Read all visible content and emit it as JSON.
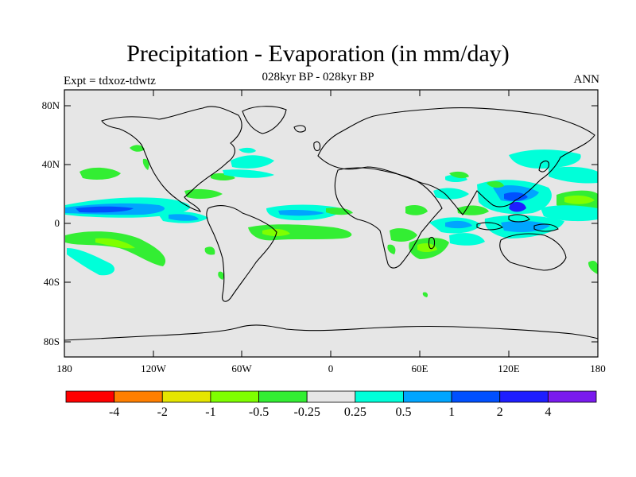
{
  "header": {
    "title": "Precipitation - Evaporation (in mm/day)",
    "subtitle": "028kyr BP - 028kyr BP",
    "left_label": "Expt = tdxoz-tdwtz",
    "right_label": "ANN"
  },
  "map": {
    "background_color": "#e6e6e6",
    "lat_ticks": [
      "80N",
      "40N",
      "0",
      "40S",
      "80S"
    ],
    "lon_ticks": [
      "180",
      "120W",
      "60W",
      "0",
      "60E",
      "120E",
      "180"
    ]
  },
  "colorbar": {
    "colors": [
      "#ff0000",
      "#ff7f00",
      "#e5e500",
      "#7fff00",
      "#33ee33",
      "#e6e6e6",
      "#00ffd9",
      "#00a5ff",
      "#0050ff",
      "#1e1eff",
      "#7a1aee"
    ],
    "labels": [
      "-4",
      "-2",
      "-1",
      "-0.5",
      "-0.25",
      "0.25",
      "0.5",
      "1",
      "2",
      "4"
    ]
  },
  "field_colors": {
    "wet_light": "#00ffd9",
    "wet_medium": "#00a5ff",
    "wet_strong": "#0050ff",
    "wet_very_strong": "#1e1eff",
    "dry_light": "#33ee33",
    "dry_medium": "#7fff00"
  }
}
